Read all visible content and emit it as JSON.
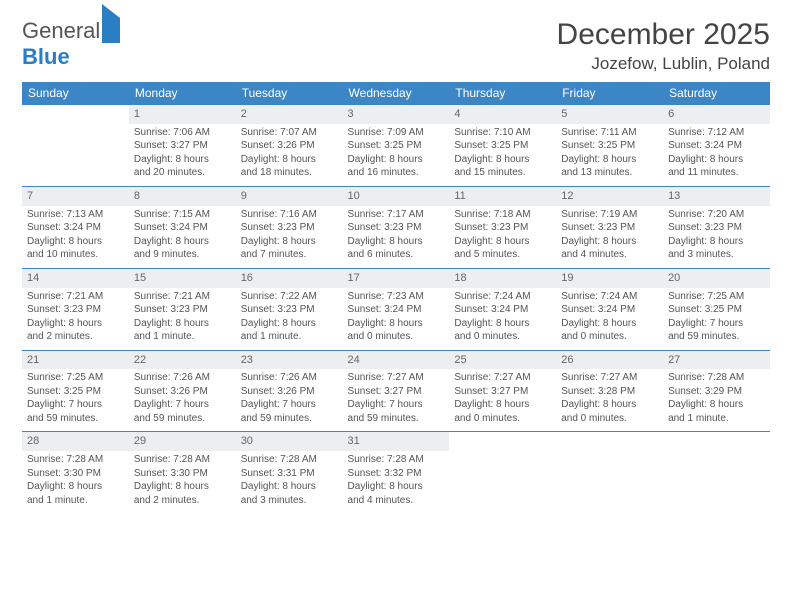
{
  "brand": {
    "part1": "General",
    "part2": "Blue"
  },
  "title": "December 2025",
  "location": "Jozefow, Lublin, Poland",
  "colors": {
    "header_bg": "#3d86c6",
    "header_text": "#ffffff",
    "daynum_bg": "#eceef0",
    "border": "#3d86c6",
    "text": "#555555"
  },
  "week_labels": [
    "Sunday",
    "Monday",
    "Tuesday",
    "Wednesday",
    "Thursday",
    "Friday",
    "Saturday"
  ],
  "weeks": [
    [
      {
        "n": "",
        "lines": []
      },
      {
        "n": "1",
        "lines": [
          "Sunrise: 7:06 AM",
          "Sunset: 3:27 PM",
          "Daylight: 8 hours",
          "and 20 minutes."
        ]
      },
      {
        "n": "2",
        "lines": [
          "Sunrise: 7:07 AM",
          "Sunset: 3:26 PM",
          "Daylight: 8 hours",
          "and 18 minutes."
        ]
      },
      {
        "n": "3",
        "lines": [
          "Sunrise: 7:09 AM",
          "Sunset: 3:25 PM",
          "Daylight: 8 hours",
          "and 16 minutes."
        ]
      },
      {
        "n": "4",
        "lines": [
          "Sunrise: 7:10 AM",
          "Sunset: 3:25 PM",
          "Daylight: 8 hours",
          "and 15 minutes."
        ]
      },
      {
        "n": "5",
        "lines": [
          "Sunrise: 7:11 AM",
          "Sunset: 3:25 PM",
          "Daylight: 8 hours",
          "and 13 minutes."
        ]
      },
      {
        "n": "6",
        "lines": [
          "Sunrise: 7:12 AM",
          "Sunset: 3:24 PM",
          "Daylight: 8 hours",
          "and 11 minutes."
        ]
      }
    ],
    [
      {
        "n": "7",
        "lines": [
          "Sunrise: 7:13 AM",
          "Sunset: 3:24 PM",
          "Daylight: 8 hours",
          "and 10 minutes."
        ]
      },
      {
        "n": "8",
        "lines": [
          "Sunrise: 7:15 AM",
          "Sunset: 3:24 PM",
          "Daylight: 8 hours",
          "and 9 minutes."
        ]
      },
      {
        "n": "9",
        "lines": [
          "Sunrise: 7:16 AM",
          "Sunset: 3:23 PM",
          "Daylight: 8 hours",
          "and 7 minutes."
        ]
      },
      {
        "n": "10",
        "lines": [
          "Sunrise: 7:17 AM",
          "Sunset: 3:23 PM",
          "Daylight: 8 hours",
          "and 6 minutes."
        ]
      },
      {
        "n": "11",
        "lines": [
          "Sunrise: 7:18 AM",
          "Sunset: 3:23 PM",
          "Daylight: 8 hours",
          "and 5 minutes."
        ]
      },
      {
        "n": "12",
        "lines": [
          "Sunrise: 7:19 AM",
          "Sunset: 3:23 PM",
          "Daylight: 8 hours",
          "and 4 minutes."
        ]
      },
      {
        "n": "13",
        "lines": [
          "Sunrise: 7:20 AM",
          "Sunset: 3:23 PM",
          "Daylight: 8 hours",
          "and 3 minutes."
        ]
      }
    ],
    [
      {
        "n": "14",
        "lines": [
          "Sunrise: 7:21 AM",
          "Sunset: 3:23 PM",
          "Daylight: 8 hours",
          "and 2 minutes."
        ]
      },
      {
        "n": "15",
        "lines": [
          "Sunrise: 7:21 AM",
          "Sunset: 3:23 PM",
          "Daylight: 8 hours",
          "and 1 minute."
        ]
      },
      {
        "n": "16",
        "lines": [
          "Sunrise: 7:22 AM",
          "Sunset: 3:23 PM",
          "Daylight: 8 hours",
          "and 1 minute."
        ]
      },
      {
        "n": "17",
        "lines": [
          "Sunrise: 7:23 AM",
          "Sunset: 3:24 PM",
          "Daylight: 8 hours",
          "and 0 minutes."
        ]
      },
      {
        "n": "18",
        "lines": [
          "Sunrise: 7:24 AM",
          "Sunset: 3:24 PM",
          "Daylight: 8 hours",
          "and 0 minutes."
        ]
      },
      {
        "n": "19",
        "lines": [
          "Sunrise: 7:24 AM",
          "Sunset: 3:24 PM",
          "Daylight: 8 hours",
          "and 0 minutes."
        ]
      },
      {
        "n": "20",
        "lines": [
          "Sunrise: 7:25 AM",
          "Sunset: 3:25 PM",
          "Daylight: 7 hours",
          "and 59 minutes."
        ]
      }
    ],
    [
      {
        "n": "21",
        "lines": [
          "Sunrise: 7:25 AM",
          "Sunset: 3:25 PM",
          "Daylight: 7 hours",
          "and 59 minutes."
        ]
      },
      {
        "n": "22",
        "lines": [
          "Sunrise: 7:26 AM",
          "Sunset: 3:26 PM",
          "Daylight: 7 hours",
          "and 59 minutes."
        ]
      },
      {
        "n": "23",
        "lines": [
          "Sunrise: 7:26 AM",
          "Sunset: 3:26 PM",
          "Daylight: 7 hours",
          "and 59 minutes."
        ]
      },
      {
        "n": "24",
        "lines": [
          "Sunrise: 7:27 AM",
          "Sunset: 3:27 PM",
          "Daylight: 7 hours",
          "and 59 minutes."
        ]
      },
      {
        "n": "25",
        "lines": [
          "Sunrise: 7:27 AM",
          "Sunset: 3:27 PM",
          "Daylight: 8 hours",
          "and 0 minutes."
        ]
      },
      {
        "n": "26",
        "lines": [
          "Sunrise: 7:27 AM",
          "Sunset: 3:28 PM",
          "Daylight: 8 hours",
          "and 0 minutes."
        ]
      },
      {
        "n": "27",
        "lines": [
          "Sunrise: 7:28 AM",
          "Sunset: 3:29 PM",
          "Daylight: 8 hours",
          "and 1 minute."
        ]
      }
    ],
    [
      {
        "n": "28",
        "lines": [
          "Sunrise: 7:28 AM",
          "Sunset: 3:30 PM",
          "Daylight: 8 hours",
          "and 1 minute."
        ]
      },
      {
        "n": "29",
        "lines": [
          "Sunrise: 7:28 AM",
          "Sunset: 3:30 PM",
          "Daylight: 8 hours",
          "and 2 minutes."
        ]
      },
      {
        "n": "30",
        "lines": [
          "Sunrise: 7:28 AM",
          "Sunset: 3:31 PM",
          "Daylight: 8 hours",
          "and 3 minutes."
        ]
      },
      {
        "n": "31",
        "lines": [
          "Sunrise: 7:28 AM",
          "Sunset: 3:32 PM",
          "Daylight: 8 hours",
          "and 4 minutes."
        ]
      },
      {
        "n": "",
        "lines": []
      },
      {
        "n": "",
        "lines": []
      },
      {
        "n": "",
        "lines": []
      }
    ]
  ]
}
